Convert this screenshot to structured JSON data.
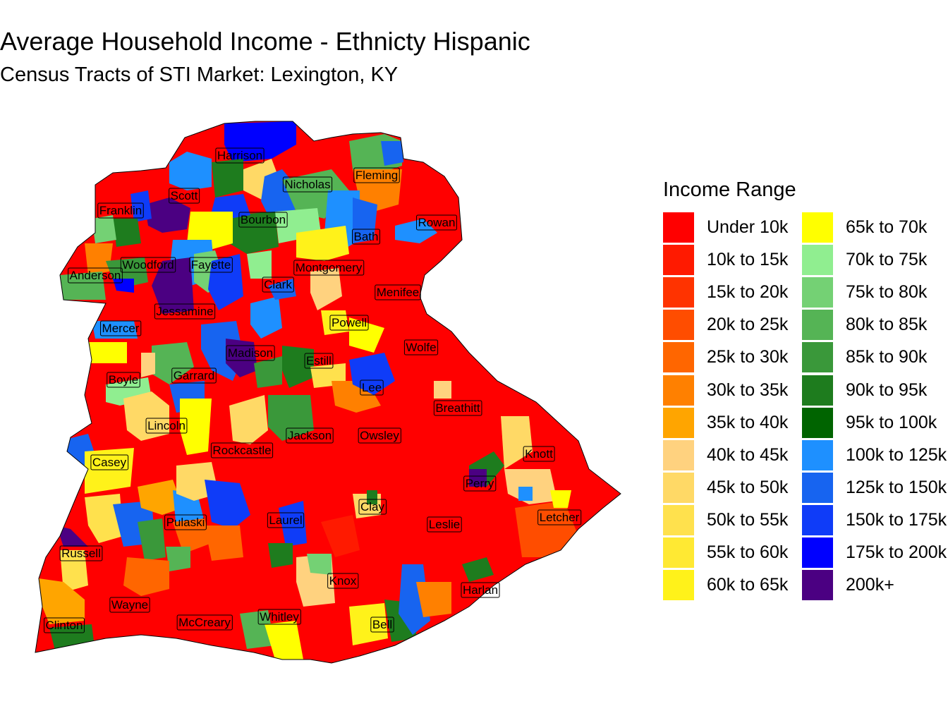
{
  "title": "Average Household Income - Ethnicty Hispanic",
  "subtitle": "Census Tracts of STI Market: Lexington, KY",
  "legend": {
    "title": "Income Range",
    "items": [
      {
        "label": "Under 10k",
        "color": "#FF0000"
      },
      {
        "label": "10k to 15k",
        "color": "#FF1A00"
      },
      {
        "label": "15k to 20k",
        "color": "#FF3300"
      },
      {
        "label": "20k to 25k",
        "color": "#FF4D00"
      },
      {
        "label": "25k to 30k",
        "color": "#FF6600"
      },
      {
        "label": "30k to 35k",
        "color": "#FF8000"
      },
      {
        "label": "35k to 40k",
        "color": "#FFA500"
      },
      {
        "label": "40k to 45k",
        "color": "#FFD27F"
      },
      {
        "label": "45k to 50k",
        "color": "#FFD966"
      },
      {
        "label": "50k to 55k",
        "color": "#FFE14D"
      },
      {
        "label": "55k to 60k",
        "color": "#FFE933"
      },
      {
        "label": "60k to 65k",
        "color": "#FFF21A"
      },
      {
        "label": "65k to 70k",
        "color": "#FFFF00"
      },
      {
        "label": "70k to 75k",
        "color": "#90EE90"
      },
      {
        "label": "75k to 80k",
        "color": "#74D174"
      },
      {
        "label": "80k to 85k",
        "color": "#55B455"
      },
      {
        "label": "85k to 90k",
        "color": "#3A983A"
      },
      {
        "label": "90k to 95k",
        "color": "#1E7C1E"
      },
      {
        "label": "95k to 100k",
        "color": "#006400"
      },
      {
        "label": "100k to 125k",
        "color": "#1E90FF"
      },
      {
        "label": "125k to 150k",
        "color": "#1764F0"
      },
      {
        "label": "150k to 175k",
        "color": "#0F3CF8"
      },
      {
        "label": "175k to 200k",
        "color": "#0000FF"
      },
      {
        "label": "200k+",
        "color": "#4B0082"
      }
    ]
  },
  "counties": [
    "Harrison",
    "Nicholas",
    "Fleming",
    "Scott",
    "Franklin",
    "Bourbon",
    "Rowan",
    "Bath",
    "Woodford",
    "Fayette",
    "Montgomery",
    "Anderson",
    "Clark",
    "Menifee",
    "Jessamine",
    "Mercer",
    "Powell",
    "Madison",
    "Wolfe",
    "Estill",
    "Boyle",
    "Garrard",
    "Lee",
    "Breathitt",
    "Lincoln",
    "Jackson",
    "Owsley",
    "Rockcastle",
    "Knott",
    "Casey",
    "Perry",
    "Clay",
    "Letcher",
    "Pulaski",
    "Laurel",
    "Leslie",
    "Russell",
    "Knox",
    "Harlan",
    "Wayne",
    "Whitley",
    "McCreary",
    "Bell",
    "Clinton"
  ]
}
